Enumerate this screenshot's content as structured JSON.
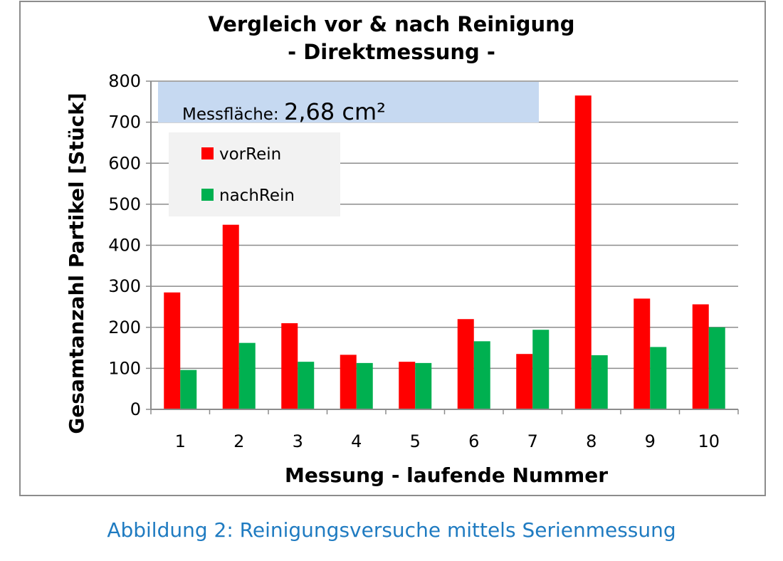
{
  "chart_data": {
    "type": "bar",
    "title": [
      "Vergleich vor & nach Reinigung",
      "- Direktmessung -"
    ],
    "xlabel": "Messung - laufende Nummer",
    "ylabel": "Gesamtanzahl Partikel [Stück]",
    "categories": [
      "1",
      "2",
      "3",
      "4",
      "5",
      "6",
      "7",
      "8",
      "9",
      "10"
    ],
    "series": [
      {
        "name": "vorRein",
        "color": "#ff0000",
        "values": [
          285,
          450,
          210,
          133,
          116,
          220,
          135,
          765,
          270,
          256
        ]
      },
      {
        "name": "nachRein",
        "color": "#00b050",
        "values": [
          96,
          162,
          116,
          113,
          113,
          166,
          194,
          132,
          152,
          200
        ]
      }
    ],
    "ylim": [
      0,
      800
    ],
    "yticks": [
      "0",
      "100",
      "200",
      "300",
      "400",
      "500",
      "600",
      "700",
      "800"
    ],
    "grid": true,
    "legend_position": "top-left",
    "annotation": {
      "prefix": "Messfläche: ",
      "value": "2,68 cm²",
      "background": "#c6d9f1"
    }
  },
  "caption": "Abbildung 2: Reinigungsversuche mittels Serienmessung"
}
